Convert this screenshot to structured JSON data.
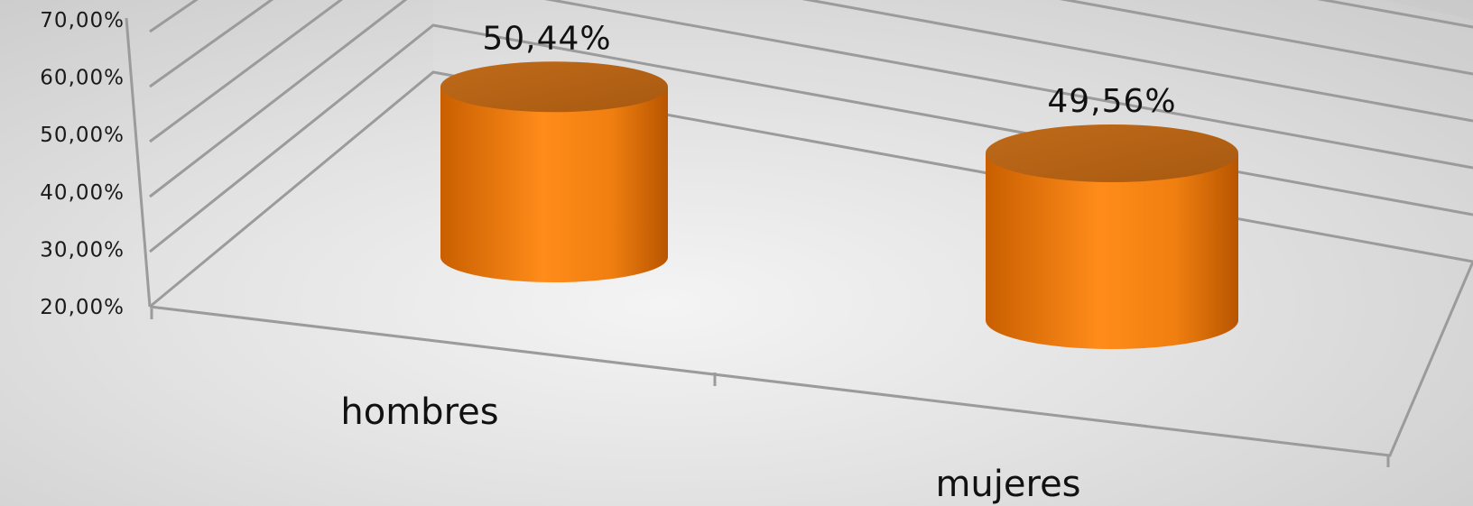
{
  "chart_data": {
    "type": "bar",
    "style": "3d-cylinder",
    "categories": [
      "hombres",
      "mujeres"
    ],
    "values": [
      0.5044,
      0.4956
    ],
    "data_labels": [
      "50,44%",
      "49,56%"
    ],
    "ylim": [
      0.2,
      0.7
    ],
    "yticks": [
      0.2,
      0.3,
      0.4,
      0.5,
      0.6,
      0.7
    ],
    "ytick_labels": [
      "20,00%",
      "30,00%",
      "40,00%",
      "50,00%",
      "60,00%",
      "70,00%"
    ],
    "grid": true,
    "legend": "none",
    "bar_color": "#ff8c1a"
  }
}
